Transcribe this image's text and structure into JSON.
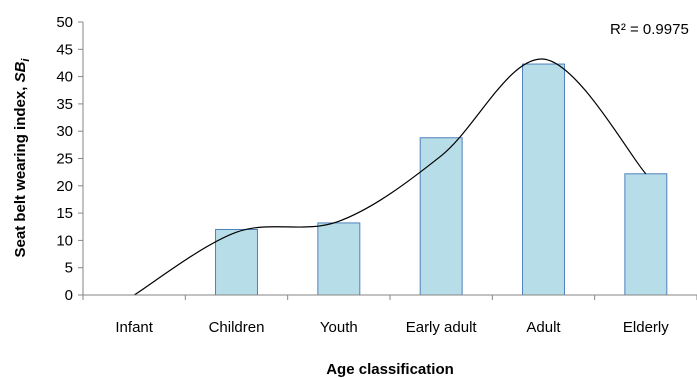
{
  "chart_data": {
    "type": "bar",
    "categories": [
      "Infant",
      "Children",
      "Youth",
      "Early adult",
      "Adult",
      "Elderly"
    ],
    "values": [
      0,
      12,
      13.2,
      28.8,
      42.3,
      22.2
    ],
    "xlabel": "Age classification",
    "ylabel_main": "Seat belt wearing index, ",
    "ylabel_symbol": "SB",
    "ylabel_subscript": "i",
    "ylim": [
      0,
      50
    ],
    "yticks": [
      0,
      5,
      10,
      15,
      20,
      25,
      30,
      35,
      40,
      45,
      50
    ],
    "grid": false,
    "legend": "none",
    "annotation": "R² = 0.9975",
    "trendline": {
      "type": "polynomial",
      "points": [
        {
          "category": "Infant",
          "value": 0
        },
        {
          "category": "Children",
          "value": 11.5
        },
        {
          "category": "Youth",
          "value": 13.5
        },
        {
          "category": "Early adult",
          "value": 25.5
        },
        {
          "category": "Adult",
          "value": 43.2
        },
        {
          "category": "Elderly",
          "value": 22.2
        }
      ]
    },
    "colors": {
      "bar_fill": "#b7dde8",
      "bar_stroke": "#4f81bd",
      "axis": "#868686",
      "trendline": "#000000"
    }
  }
}
